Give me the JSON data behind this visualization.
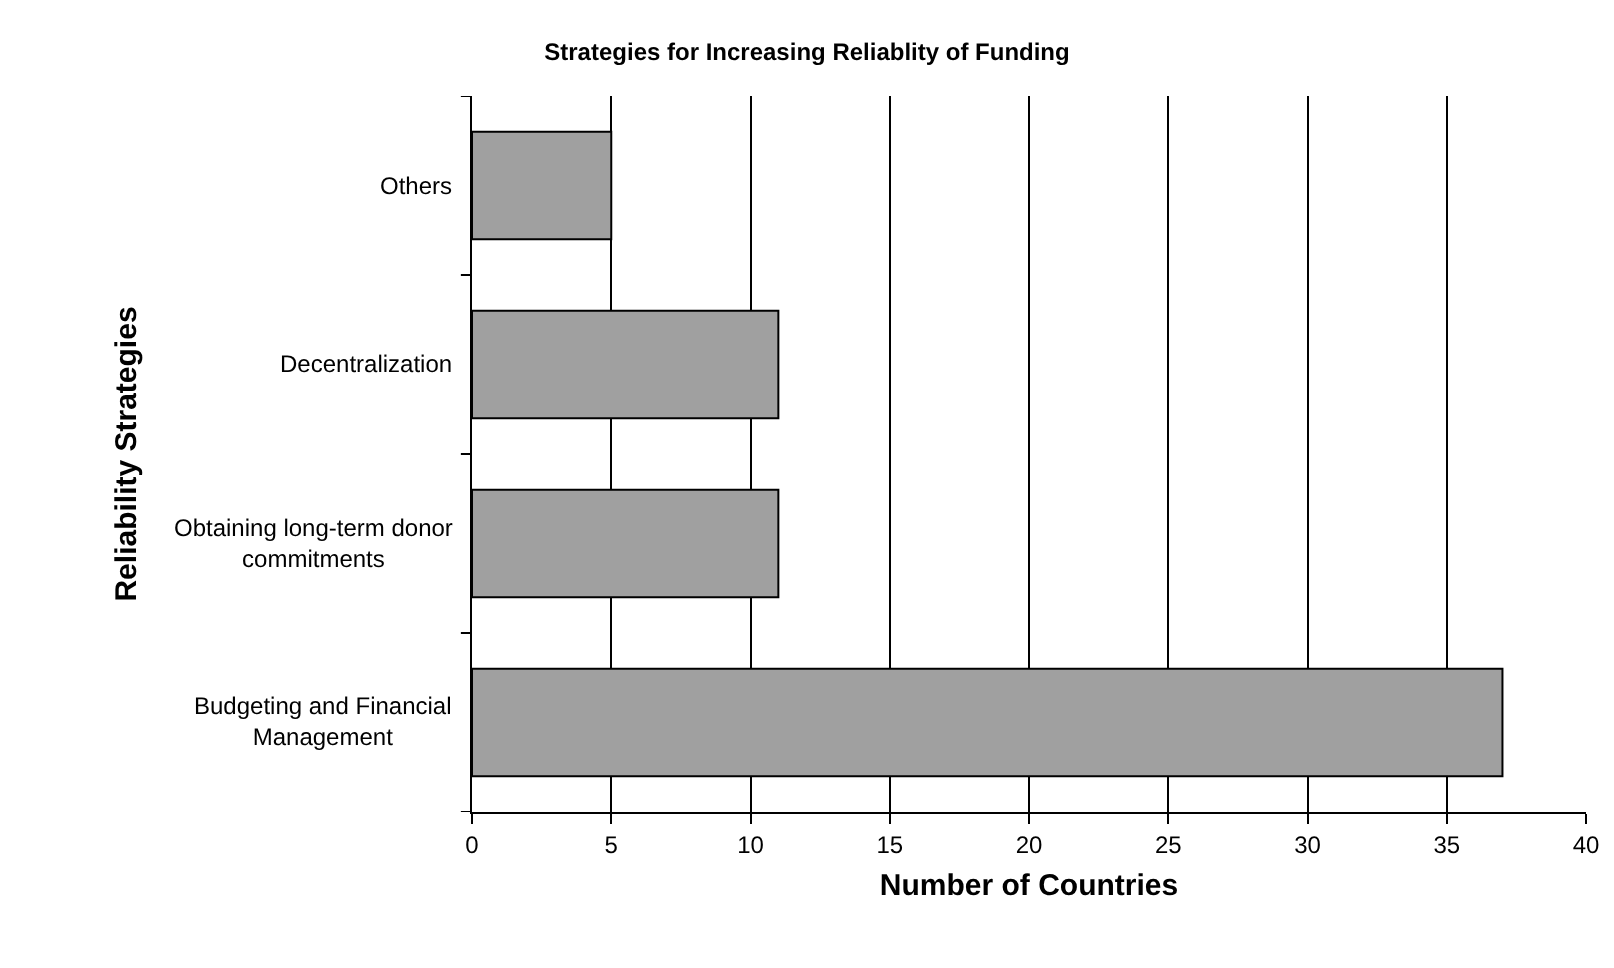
{
  "chart_data": {
    "type": "bar",
    "orientation": "horizontal",
    "title": "Strategies for Increasing Reliablity of Funding",
    "xlabel": "Number of Countries",
    "ylabel": "Reliability Strategies",
    "categories": [
      "Others",
      "Decentralization",
      "Obtaining long-term donor commitments",
      "Budgeting and Financial Management"
    ],
    "values": [
      5,
      11,
      11,
      37
    ],
    "color": "#a0a0a0",
    "xlim": [
      0,
      40
    ],
    "xticks": [
      0,
      5,
      10,
      15,
      20,
      25,
      30,
      35,
      40
    ],
    "grid": "x",
    "legend": false
  }
}
